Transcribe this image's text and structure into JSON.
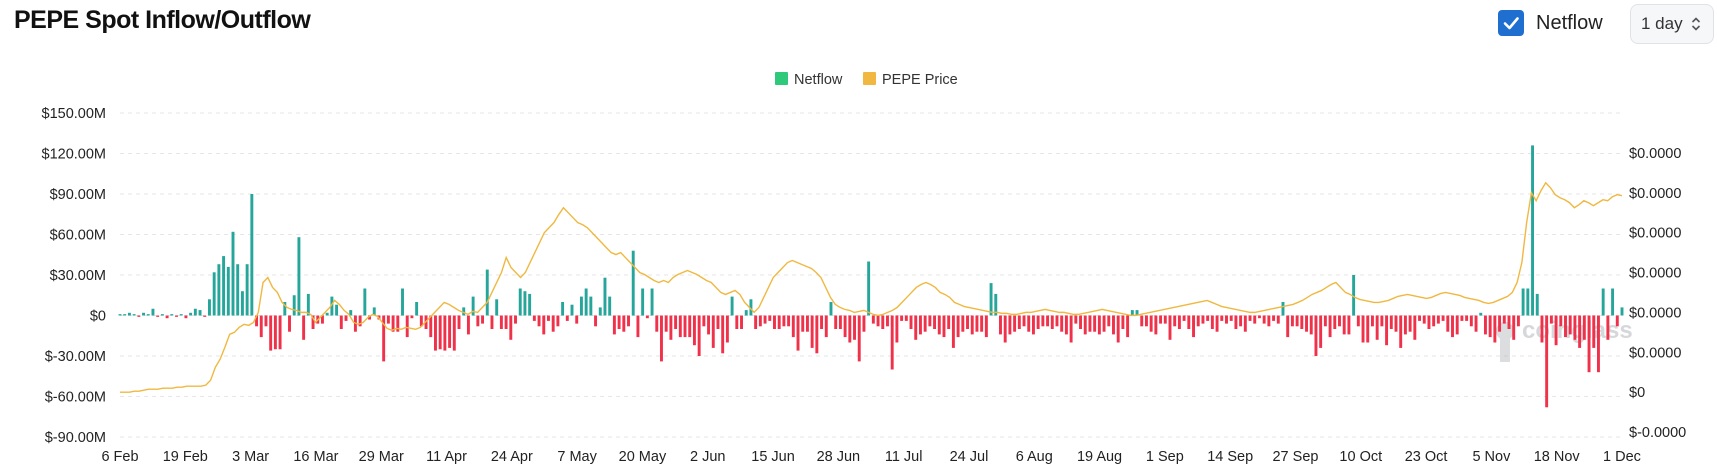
{
  "header": {
    "title": "PEPE Spot Inflow/Outflow",
    "netflow_toggle_label": "Netflow",
    "netflow_checked": true,
    "interval_value": "1 day"
  },
  "colors": {
    "inflow": "#26a69a",
    "outflow": "#f0314a",
    "price": "#f0b840",
    "legend_netflow": "#2ec97a",
    "legend_price": "#f0b840",
    "checkbox": "#1f6fd1"
  },
  "chart_data": {
    "type": "bar",
    "title": "PEPE Spot Inflow/Outflow",
    "legend": [
      "Netflow",
      "PEPE Price"
    ],
    "legend_position": "top-center",
    "grid": true,
    "x_ticks": [
      "6 Feb",
      "19 Feb",
      "3 Mar",
      "16 Mar",
      "29 Mar",
      "11 Apr",
      "24 Apr",
      "7 May",
      "20 May",
      "2 Jun",
      "15 Jun",
      "28 Jun",
      "11 Jul",
      "24 Jul",
      "6 Aug",
      "19 Aug",
      "1 Sep",
      "14 Sep",
      "27 Sep",
      "10 Oct",
      "23 Oct",
      "5 Nov",
      "18 Nov",
      "1 Dec"
    ],
    "y_left_ticks": [
      "$150.00M",
      "$120.00M",
      "$90.00M",
      "$60.00M",
      "$30.00M",
      "$0",
      "$-30.00M",
      "$-60.00M",
      "$-90.00M"
    ],
    "y_left_values": [
      150,
      120,
      90,
      60,
      30,
      0,
      -30,
      -60,
      -90
    ],
    "y_left_range": [
      -90,
      150
    ],
    "y_right_ticks": [
      "$0.0000",
      "$0.0000",
      "$0.0000",
      "$0.0000",
      "$0.0000",
      "$0.0000",
      "$0",
      "$-0.0000"
    ],
    "y_right_values": [
      3e-05,
      2.6e-05,
      2.2e-05,
      1.8e-05,
      1.4e-05,
      1e-05,
      6e-06,
      2e-06
    ],
    "series": [
      {
        "name": "Netflow",
        "unit": "USD millions",
        "start_date": "6 Feb",
        "values": [
          1,
          1,
          2,
          1,
          -1,
          2,
          1,
          5,
          -1,
          1,
          -2,
          1,
          -1,
          1,
          -2,
          2,
          5,
          4,
          -1,
          12,
          32,
          38,
          44,
          36,
          62,
          38,
          18,
          38,
          90,
          -8,
          -16,
          -8,
          -26,
          -25,
          -25,
          10,
          -12,
          15,
          58,
          -18,
          16,
          -10,
          -6,
          -6,
          2,
          14,
          8,
          -10,
          -4,
          4,
          -12,
          -8,
          20,
          -3,
          6,
          -3,
          -34,
          -6,
          -12,
          -12,
          20,
          -16,
          -2,
          10,
          -8,
          -10,
          -16,
          -26,
          -25,
          -26,
          -24,
          -26,
          -10,
          6,
          -14,
          14,
          -8,
          -6,
          34,
          -10,
          12,
          -10,
          -10,
          -18,
          -6,
          20,
          18,
          16,
          -4,
          -8,
          -14,
          -4,
          -12,
          -8,
          10,
          -4,
          8,
          -6,
          14,
          20,
          14,
          -8,
          6,
          28,
          14,
          -14,
          -10,
          -12,
          -8,
          48,
          -16,
          20,
          -2,
          20,
          -12,
          -34,
          -12,
          -18,
          -10,
          -16,
          -16,
          -16,
          -22,
          -30,
          -8,
          -14,
          -24,
          -10,
          -28,
          -20,
          14,
          -10,
          -10,
          4,
          12,
          -10,
          -8,
          -6,
          -4,
          -10,
          -10,
          -8,
          -8,
          -16,
          -26,
          -12,
          -12,
          -24,
          -28,
          -10,
          -16,
          10,
          -10,
          -10,
          -16,
          -20,
          -18,
          -34,
          -12,
          40,
          -6,
          -8,
          -10,
          -8,
          -40,
          -20,
          -4,
          -4,
          -10,
          -18,
          -14,
          -12,
          -8,
          -10,
          -14,
          -16,
          -10,
          -24,
          -16,
          -12,
          -10,
          -14,
          -12,
          -12,
          -16,
          24,
          16,
          -14,
          -20,
          -14,
          -12,
          -10,
          -8,
          -12,
          -14,
          -10,
          -8,
          -8,
          -10,
          -8,
          -12,
          -14,
          -20,
          -6,
          -10,
          -14,
          -12,
          -12,
          -14,
          -12,
          -8,
          -14,
          -20,
          -10,
          -16,
          4,
          4,
          -8,
          -8,
          -12,
          -14,
          -6,
          -6,
          -18,
          -8,
          -10,
          -4,
          -10,
          -16,
          -8,
          -6,
          -4,
          -10,
          -12,
          -4,
          -6,
          -4,
          -10,
          -8,
          -12,
          -4,
          -6,
          -2,
          -6,
          -8,
          -4,
          -6,
          10,
          -16,
          -8,
          -8,
          -10,
          -12,
          -14,
          -30,
          -24,
          -8,
          -16,
          -10,
          -8,
          -14,
          -14,
          30,
          -8,
          -20,
          -20,
          -8,
          -18,
          -8,
          -22,
          -10,
          -12,
          -24,
          -14,
          -12,
          -18,
          -4,
          -6,
          -10,
          -8,
          -6,
          -4,
          -12,
          -16,
          -14,
          -4,
          -4,
          -8,
          -12,
          2,
          -14,
          -16,
          -20,
          -12,
          -6,
          -10,
          -18,
          -8,
          20,
          20,
          126,
          16,
          -20,
          -68,
          -6,
          -22,
          -8,
          -16,
          -14,
          -18,
          -24,
          -18,
          -42,
          -24,
          -42,
          20,
          -18,
          20,
          -8,
          6
        ],
        "color": "#26a69a / #f0314a"
      },
      {
        "name": "PEPE Price",
        "note": "secondary axis",
        "values": [
          6e-06,
          6e-06,
          6e-06,
          6.1e-06,
          6.1e-06,
          6.2e-06,
          6.3e-06,
          6.3e-06,
          6.3e-06,
          6.4e-06,
          6.4e-06,
          6.4e-06,
          6.5e-06,
          6.5e-06,
          6.6e-06,
          6.6e-06,
          6.6e-06,
          6.6e-06,
          6.7e-06,
          7.2e-06,
          8.5e-06,
          9.3e-06,
          1.05e-05,
          1.18e-05,
          1.2e-05,
          1.25e-05,
          1.28e-05,
          1.27e-05,
          1.3e-05,
          1.4e-05,
          1.7e-05,
          1.75e-05,
          1.65e-05,
          1.6e-05,
          1.5e-05,
          1.45e-05,
          1.43e-05,
          1.42e-05,
          1.4e-05,
          1.4e-05,
          1.38e-05,
          1.3e-05,
          1.35e-05,
          1.4e-05,
          1.45e-05,
          1.52e-05,
          1.48e-05,
          1.42e-05,
          1.38e-05,
          1.3e-05,
          1.28e-05,
          1.3e-05,
          1.35e-05,
          1.38e-05,
          1.36e-05,
          1.3e-05,
          1.24e-05,
          1.22e-05,
          1.24e-05,
          1.23e-05,
          1.25e-05,
          1.24e-05,
          1.23e-05,
          1.25e-05,
          1.3e-05,
          1.35e-05,
          1.4e-05,
          1.45e-05,
          1.5e-05,
          1.48e-05,
          1.45e-05,
          1.42e-05,
          1.4e-05,
          1.38e-05,
          1.41e-05,
          1.4e-05,
          1.45e-05,
          1.5e-05,
          1.6e-05,
          1.7e-05,
          1.8e-05,
          1.95e-05,
          1.85e-05,
          1.8e-05,
          1.75e-05,
          1.8e-05,
          1.9e-05,
          2e-05,
          2.1e-05,
          2.2e-05,
          2.25e-05,
          2.3e-05,
          2.38e-05,
          2.45e-05,
          2.4e-05,
          2.35e-05,
          2.3e-05,
          2.28e-05,
          2.25e-05,
          2.2e-05,
          2.15e-05,
          2.1e-05,
          2.05e-05,
          2e-05,
          1.98e-05,
          2e-05,
          1.95e-05,
          1.9e-05,
          1.85e-05,
          1.8e-05,
          1.78e-05,
          1.75e-05,
          1.72e-05,
          1.7e-05,
          1.72e-05,
          1.7e-05,
          1.75e-05,
          1.78e-05,
          1.8e-05,
          1.82e-05,
          1.8e-05,
          1.78e-05,
          1.75e-05,
          1.72e-05,
          1.7e-05,
          1.65e-05,
          1.6e-05,
          1.58e-05,
          1.6e-05,
          1.62e-05,
          1.58e-05,
          1.5e-05,
          1.45e-05,
          1.4e-05,
          1.45e-05,
          1.55e-05,
          1.65e-05,
          1.75e-05,
          1.8e-05,
          1.85e-05,
          1.9e-05,
          1.92e-05,
          1.9e-05,
          1.88e-05,
          1.86e-05,
          1.84e-05,
          1.8e-05,
          1.75e-05,
          1.65e-05,
          1.55e-05,
          1.48e-05,
          1.45e-05,
          1.43e-05,
          1.42e-05,
          1.4e-05,
          1.41e-05,
          1.42e-05,
          1.4e-05,
          1.38e-05,
          1.37e-05,
          1.38e-05,
          1.4e-05,
          1.42e-05,
          1.45e-05,
          1.5e-05,
          1.55e-05,
          1.6e-05,
          1.65e-05,
          1.68e-05,
          1.7e-05,
          1.68e-05,
          1.65e-05,
          1.6e-05,
          1.58e-05,
          1.55e-05,
          1.5e-05,
          1.48e-05,
          1.46e-05,
          1.45e-05,
          1.44e-05,
          1.43e-05,
          1.42e-05,
          1.41e-05,
          1.4e-05,
          1.4e-05,
          1.39e-05,
          1.39e-05,
          1.38e-05,
          1.38e-05,
          1.39e-05,
          1.4e-05,
          1.4e-05,
          1.41e-05,
          1.42e-05,
          1.43e-05,
          1.42e-05,
          1.41e-05,
          1.4e-05,
          1.4e-05,
          1.39e-05,
          1.38e-05,
          1.38e-05,
          1.39e-05,
          1.4e-05,
          1.41e-05,
          1.42e-05,
          1.43e-05,
          1.42e-05,
          1.41e-05,
          1.4e-05,
          1.39e-05,
          1.38e-05,
          1.37e-05,
          1.37e-05,
          1.38e-05,
          1.39e-05,
          1.4e-05,
          1.41e-05,
          1.42e-05,
          1.43e-05,
          1.44e-05,
          1.45e-05,
          1.46e-05,
          1.47e-05,
          1.48e-05,
          1.49e-05,
          1.5e-05,
          1.51e-05,
          1.52e-05,
          1.5e-05,
          1.48e-05,
          1.46e-05,
          1.45e-05,
          1.44e-05,
          1.43e-05,
          1.42e-05,
          1.41e-05,
          1.4e-05,
          1.4e-05,
          1.41e-05,
          1.42e-05,
          1.43e-05,
          1.44e-05,
          1.45e-05,
          1.46e-05,
          1.47e-05,
          1.48e-05,
          1.5e-05,
          1.52e-05,
          1.55e-05,
          1.58e-05,
          1.6e-05,
          1.62e-05,
          1.65e-05,
          1.68e-05,
          1.7e-05,
          1.65e-05,
          1.6e-05,
          1.58e-05,
          1.55e-05,
          1.53e-05,
          1.52e-05,
          1.51e-05,
          1.5e-05,
          1.5e-05,
          1.51e-05,
          1.52e-05,
          1.54e-05,
          1.56e-05,
          1.57e-05,
          1.58e-05,
          1.57e-05,
          1.56e-05,
          1.55e-05,
          1.54e-05,
          1.55e-05,
          1.57e-05,
          1.59e-05,
          1.6e-05,
          1.59e-05,
          1.58e-05,
          1.57e-05,
          1.55e-05,
          1.54e-05,
          1.53e-05,
          1.52e-05,
          1.5e-05,
          1.49e-05,
          1.5e-05,
          1.52e-05,
          1.54e-05,
          1.56e-05,
          1.6e-05,
          1.7e-05,
          1.9e-05,
          2.3e-05,
          2.6e-05,
          2.52e-05,
          2.62e-05,
          2.7e-05,
          2.65e-05,
          2.58e-05,
          2.55e-05,
          2.53e-05,
          2.5e-05,
          2.45e-05,
          2.48e-05,
          2.52e-05,
          2.5e-05,
          2.47e-05,
          2.5e-05,
          2.53e-05,
          2.52e-05,
          2.56e-05,
          2.58e-05,
          2.57e-05
        ]
      }
    ]
  }
}
